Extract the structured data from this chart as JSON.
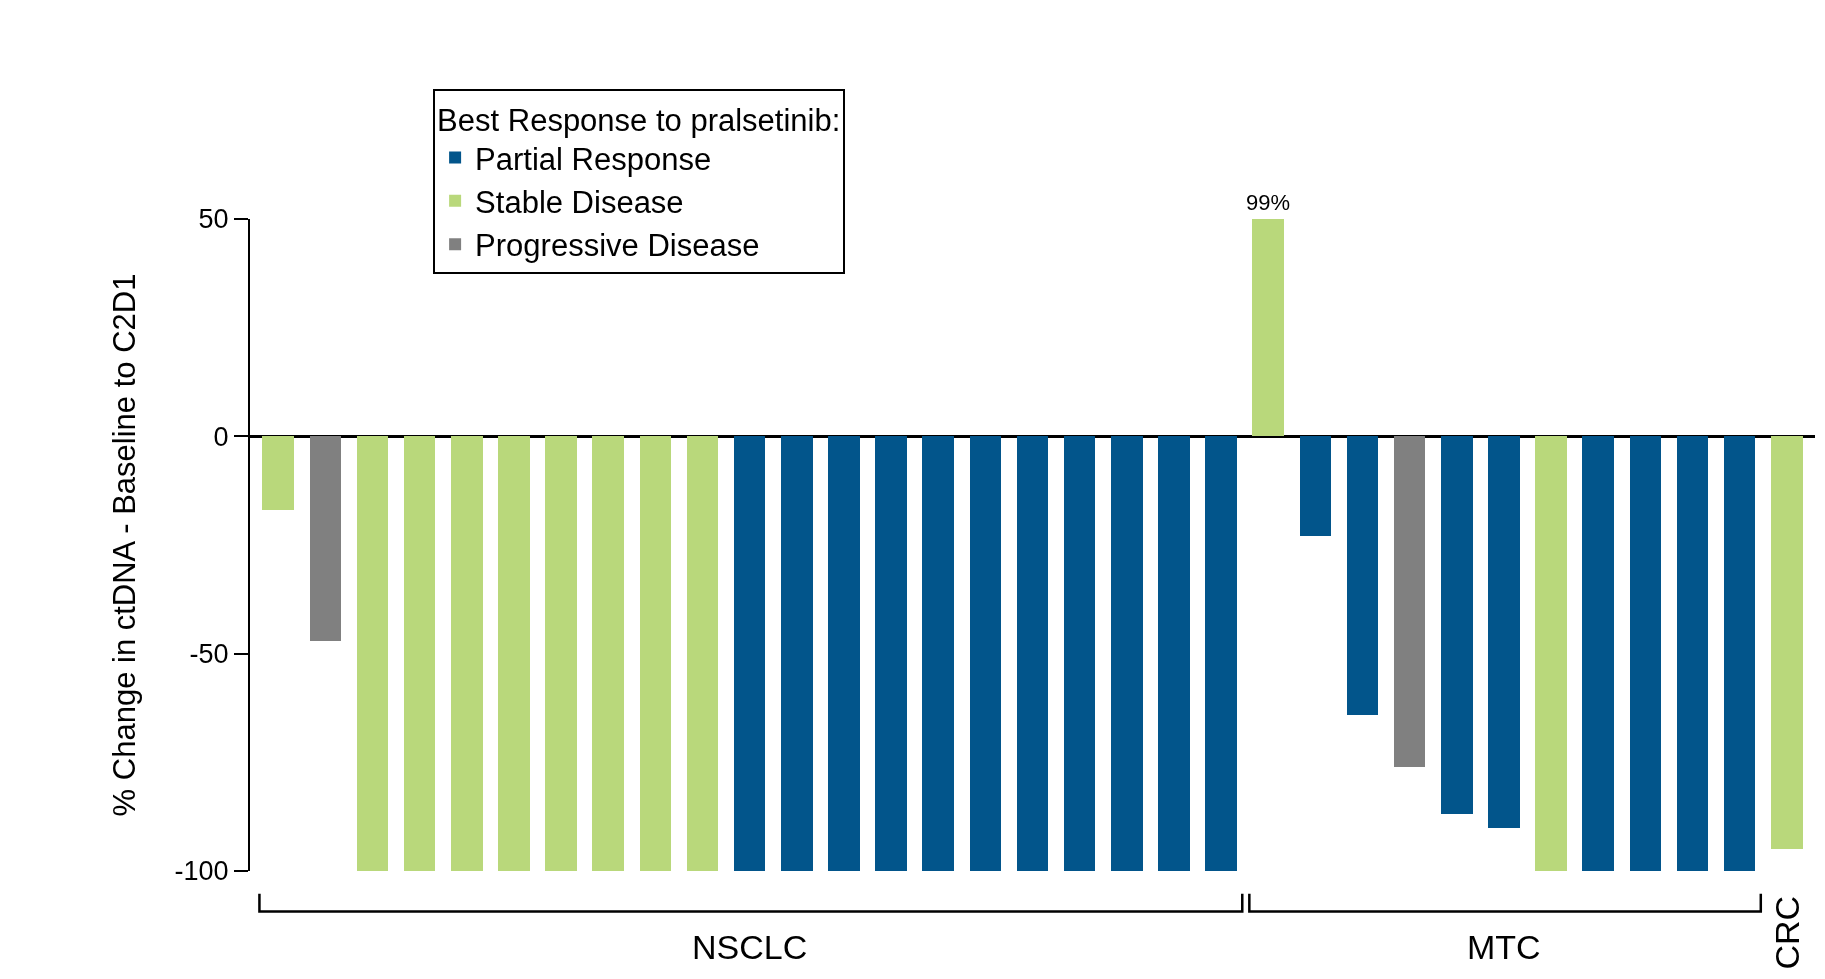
{
  "chart_data": {
    "type": "bar",
    "ylabel": "% Change in ctDNA - Baseline to C2D1",
    "legend_title": "Best Response to pralsetinib:",
    "categories": [
      null,
      null,
      null,
      null,
      null,
      null,
      null,
      null,
      null,
      null,
      null,
      null,
      null,
      null,
      null,
      null,
      null,
      null,
      null,
      null,
      null,
      null,
      null,
      null,
      null,
      null,
      null,
      null,
      null,
      null,
      null,
      null,
      null
    ],
    "series": [
      {
        "name": "Partial Response",
        "color": "#02558b",
        "values": [
          null,
          null,
          null,
          null,
          null,
          null,
          null,
          null,
          null,
          null,
          -100,
          -100,
          -100,
          -100,
          -100,
          -100,
          -100,
          -100,
          -100,
          -100,
          -100,
          null,
          -23,
          -64,
          null,
          -87,
          -90,
          null,
          -100,
          -100,
          -100,
          -100,
          null
        ]
      },
      {
        "name": "Stable Disease",
        "color": "#b9d87b",
        "values": [
          -17,
          null,
          -100,
          -100,
          -100,
          -100,
          -100,
          -100,
          -100,
          -100,
          null,
          null,
          null,
          null,
          null,
          null,
          null,
          null,
          null,
          null,
          null,
          50,
          null,
          null,
          null,
          null,
          null,
          -100,
          null,
          null,
          null,
          null,
          -95
        ]
      },
      {
        "name": "Progressive Disease",
        "color": "#808080",
        "values": [
          null,
          -47,
          null,
          null,
          null,
          null,
          null,
          null,
          null,
          null,
          null,
          null,
          null,
          null,
          null,
          null,
          null,
          null,
          null,
          null,
          null,
          null,
          null,
          null,
          -76,
          null,
          null,
          null,
          null,
          null,
          null,
          null,
          null
        ]
      }
    ],
    "ylim": [
      -100,
      50
    ],
    "yticks": [
      -100,
      -50,
      0,
      50
    ],
    "legend": "top left",
    "annotations": [
      {
        "text": "99%",
        "y": 50
      },
      "NSCLC",
      "MTC",
      "CRC"
    ]
  }
}
